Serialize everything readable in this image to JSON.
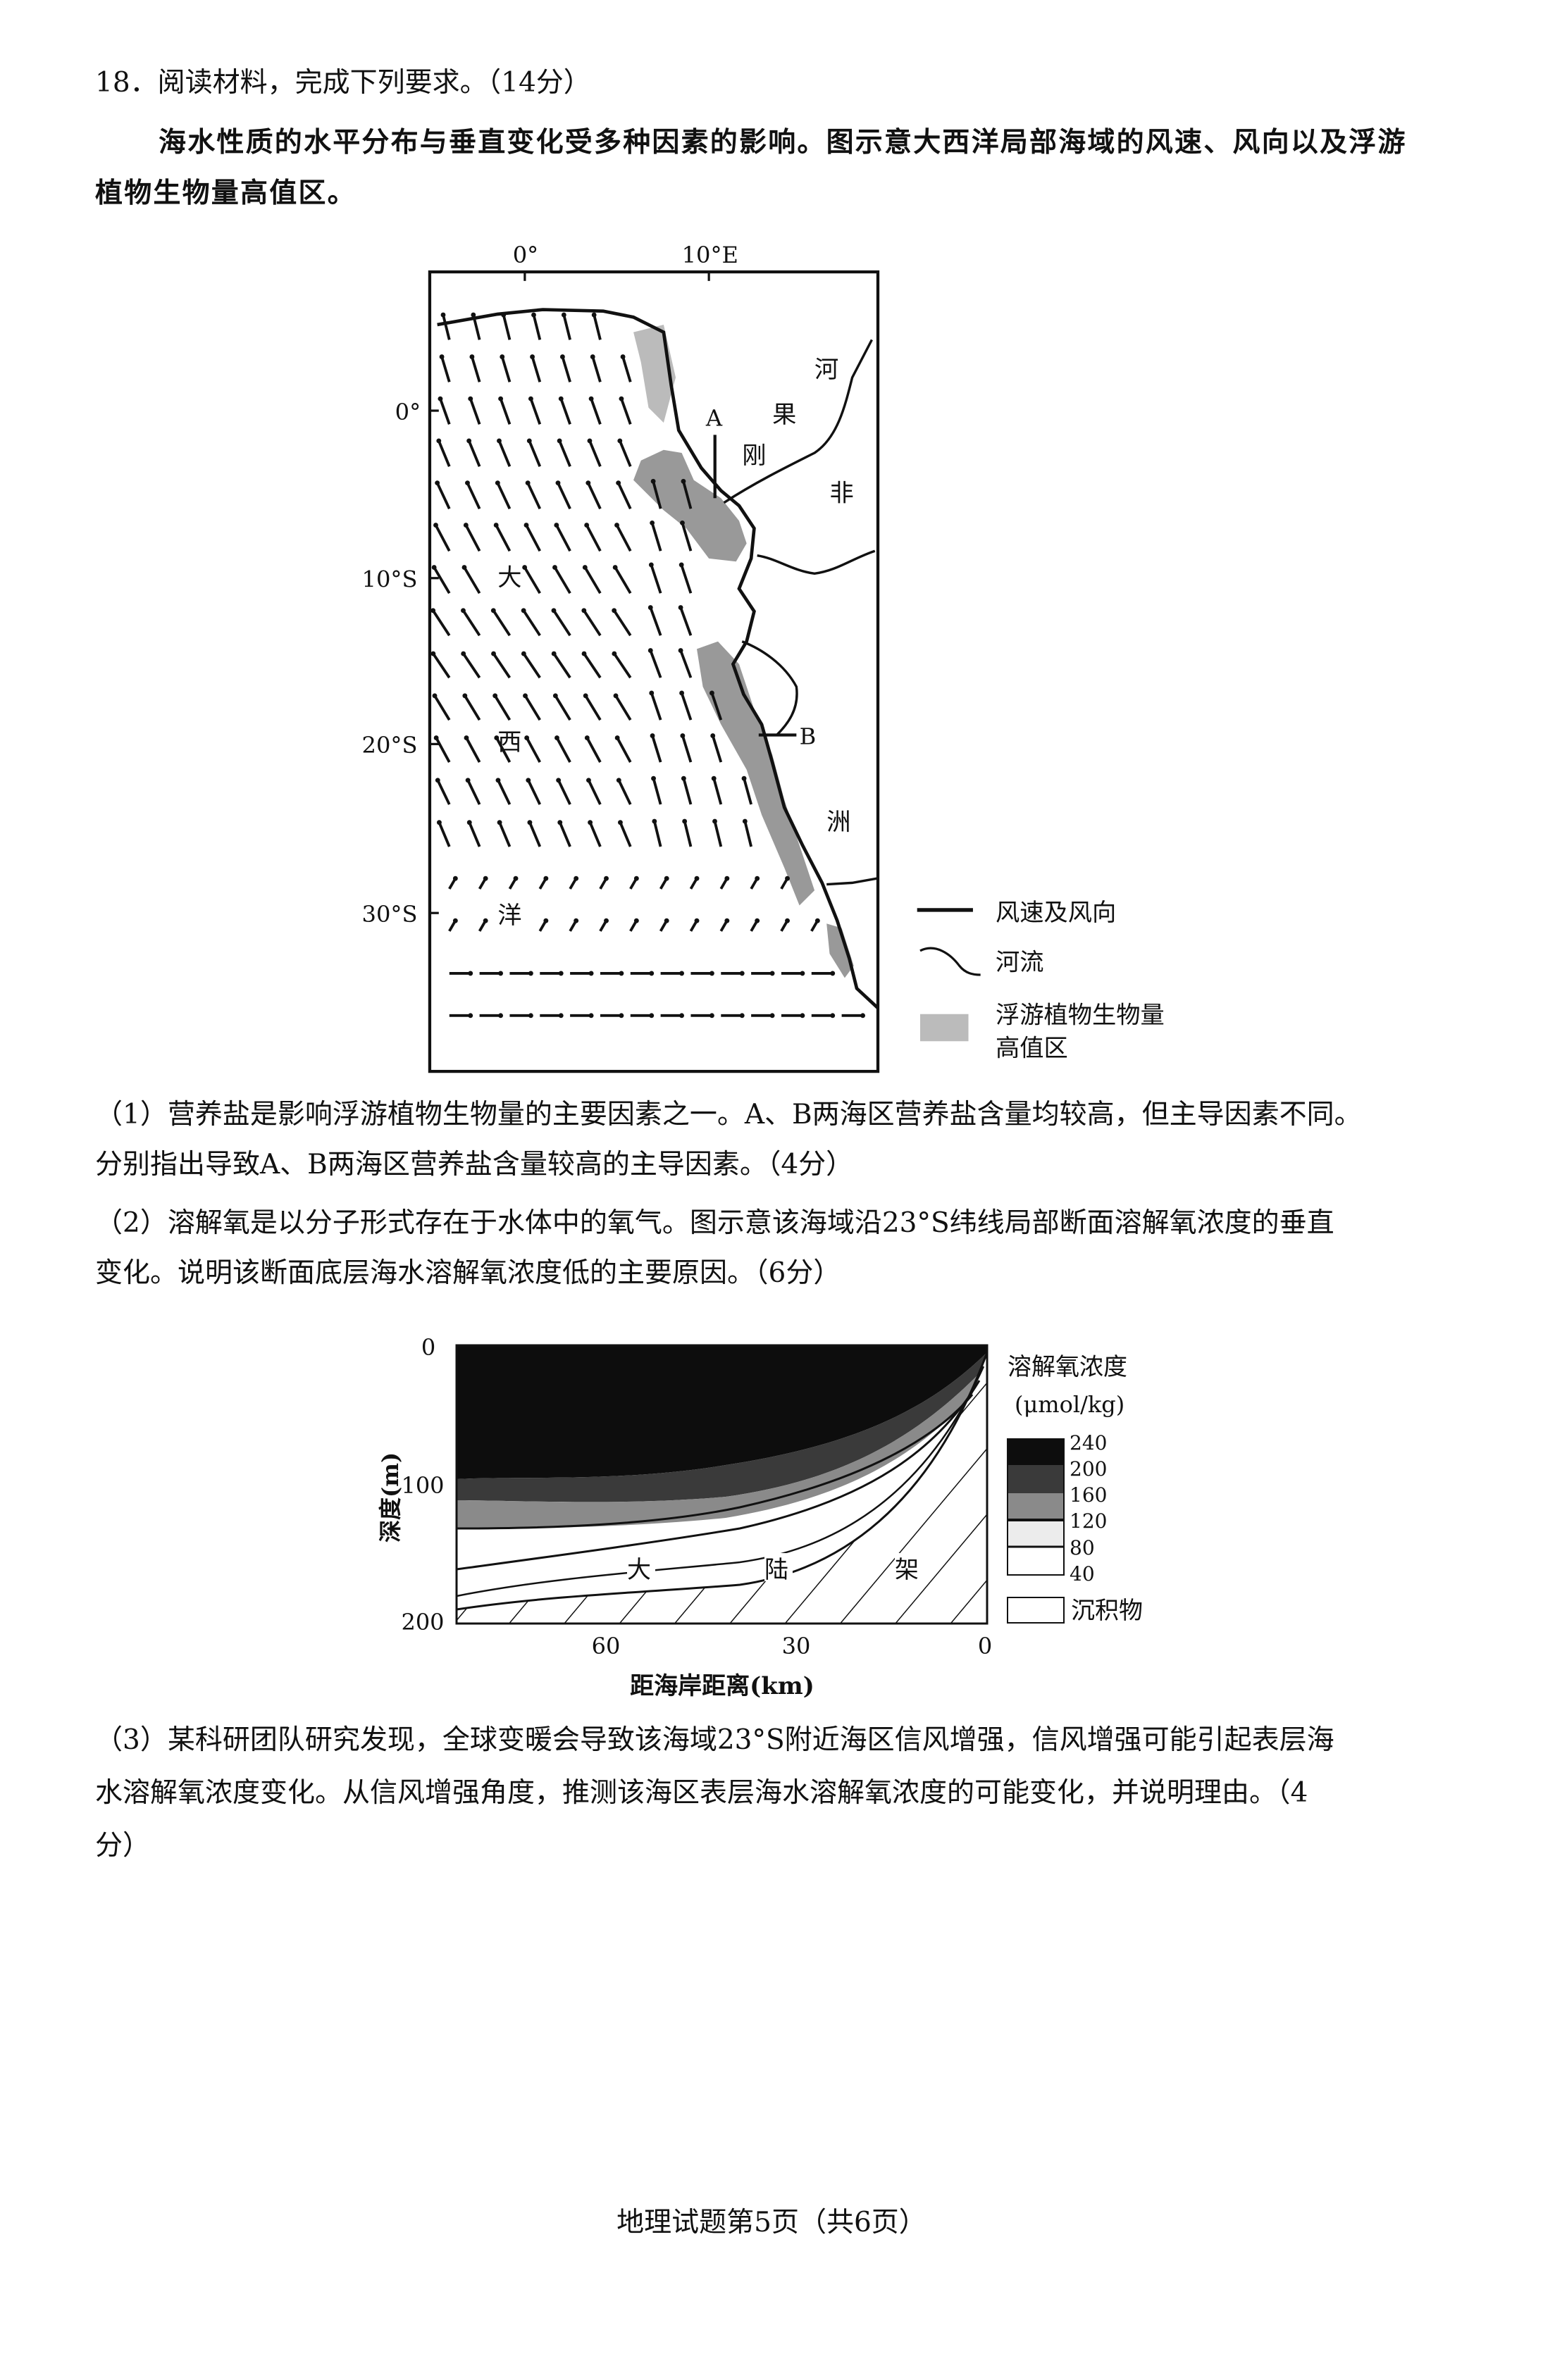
{
  "question": {
    "heading": "18．阅读材料，完成下列要求。（14分）",
    "material_lines": [
      "海水性质的水平分布与垂直变化受多种因素的影响。图示意大西洋局部海域的风速、风向以及浮游",
      "植物生物量高值区。"
    ]
  },
  "map": {
    "lon_labels": [
      "0°",
      "10°E"
    ],
    "lat_labels": [
      "0°",
      "10°S",
      "20°S",
      "30°S"
    ],
    "point_labels": [
      "A",
      "B"
    ],
    "ocean_chars": [
      "大",
      "西",
      "洋"
    ],
    "land_chars": [
      "刚",
      "果",
      "河",
      "非",
      "洲"
    ],
    "legend": {
      "wind": "风速及风向",
      "river": "河流",
      "plankton_line1": "浮游植物生物量",
      "plankton_line2": "高值区"
    }
  },
  "sub_questions": {
    "q1_lines": [
      "（1）营养盐是影响浮游植物生物量的主要因素之一。A、B两海区营养盐含量均较高，但主导因素不同。",
      "分别指出导致A、B两海区营养盐含量较高的主导因素。（4分）"
    ],
    "q2_lines": [
      "（2）溶解氧是以分子形式存在于水体中的氧气。图示意该海域沿23°S纬线局部断面溶解氧浓度的垂直",
      "变化。说明该断面底层海水溶解氧浓度低的主要原因。（6分）"
    ],
    "q3_lines": [
      "（3）某科研团队研究发现，全球变暖会导致该海域23°S附近海区信风增强，信风增强可能引起表层海",
      "水溶解氧浓度变化。从信风增强角度，推测该海区表层海水溶解氧浓度的可能变化，并说明理由。（4",
      "分）"
    ]
  },
  "section_chart": {
    "ylabel": "深度(m)",
    "y_ticks": [
      "0",
      "100",
      "200"
    ],
    "xlabel": "距海岸距离(km)",
    "x_ticks": [
      "60",
      "30",
      "0"
    ],
    "shelf_label": [
      "大",
      "陆",
      "架"
    ],
    "legend_title": "溶解氧浓度",
    "legend_unit": "(μmol/kg)",
    "legend_ticks": [
      "240",
      "200",
      "160",
      "120",
      "80",
      "40"
    ],
    "legend_sediment": "沉积物"
  },
  "footer": {
    "page_label": "地理试题第5页（共6页）"
  }
}
